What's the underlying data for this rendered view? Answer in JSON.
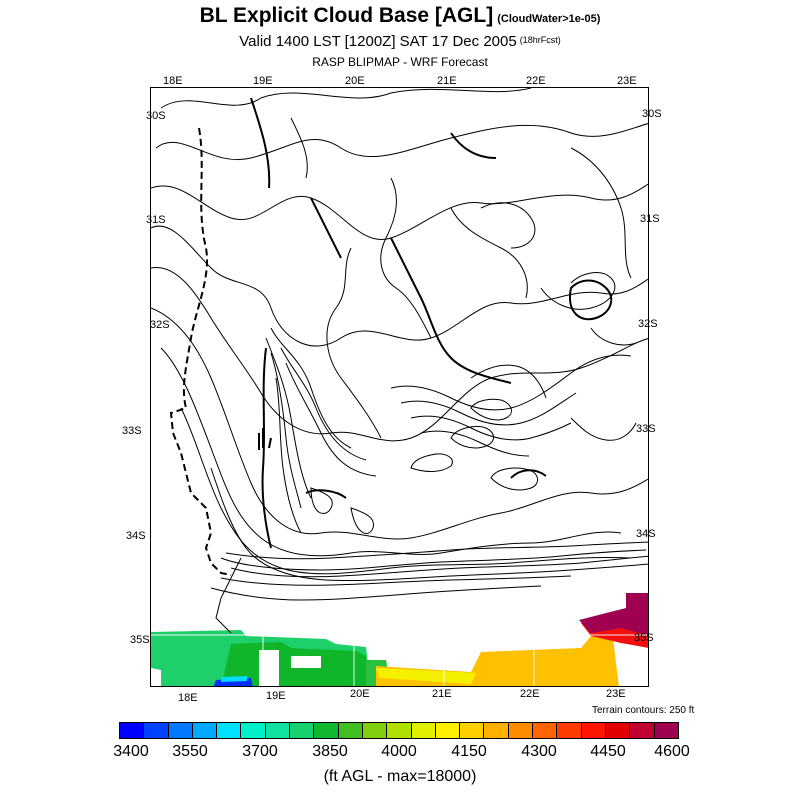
{
  "header": {
    "title": "BL Explicit Cloud Base [AGL]",
    "title_note": "(CloudWater>1e-05)",
    "valid": "Valid 1400 LST [1200Z] SAT 17 Dec 2005",
    "valid_note": "(18hrFcst)",
    "model": "RASP BLIPMAP - WRF Forecast"
  },
  "map": {
    "top_lon_labels": [
      "18E",
      "19E",
      "20E",
      "21E",
      "22E",
      "23E"
    ],
    "bottom_lon_labels": [
      "18E",
      "19E",
      "20E",
      "21E",
      "22E",
      "23E"
    ],
    "left_lat_labels": [
      "30S",
      "31S",
      "32S",
      "33S",
      "34S",
      "35S"
    ],
    "right_lat_labels": [
      "30S",
      "31S",
      "32S",
      "33S",
      "34S",
      "35S"
    ],
    "terrain_note": "Terrain contours: 250 ft",
    "fill_colors": {
      "green": "#1fcf6a",
      "dark_green": "#0fb62a",
      "yellow": "#fdc100",
      "bright_yellow": "#f5ef00",
      "magenta": "#a00050",
      "red": "#f01010",
      "blue": "#0030ff",
      "cyan": "#00dcff"
    }
  },
  "colorbar": {
    "colors": [
      "#0000ff",
      "#0040ff",
      "#0078ff",
      "#00a8ff",
      "#00e0ff",
      "#00f0c8",
      "#10e0a0",
      "#18d070",
      "#10b830",
      "#40c020",
      "#80d010",
      "#b0e000",
      "#e0f000",
      "#fff000",
      "#ffd000",
      "#ffb000",
      "#ff8c00",
      "#ff6400",
      "#ff3c00",
      "#ff1400",
      "#e00000",
      "#c00030",
      "#a00050"
    ],
    "labels": [
      "3400",
      "3550",
      "3700",
      "3850",
      "4000",
      "4150",
      "4300",
      "4450",
      "4600"
    ],
    "units": "(ft AGL - max=18000)"
  }
}
